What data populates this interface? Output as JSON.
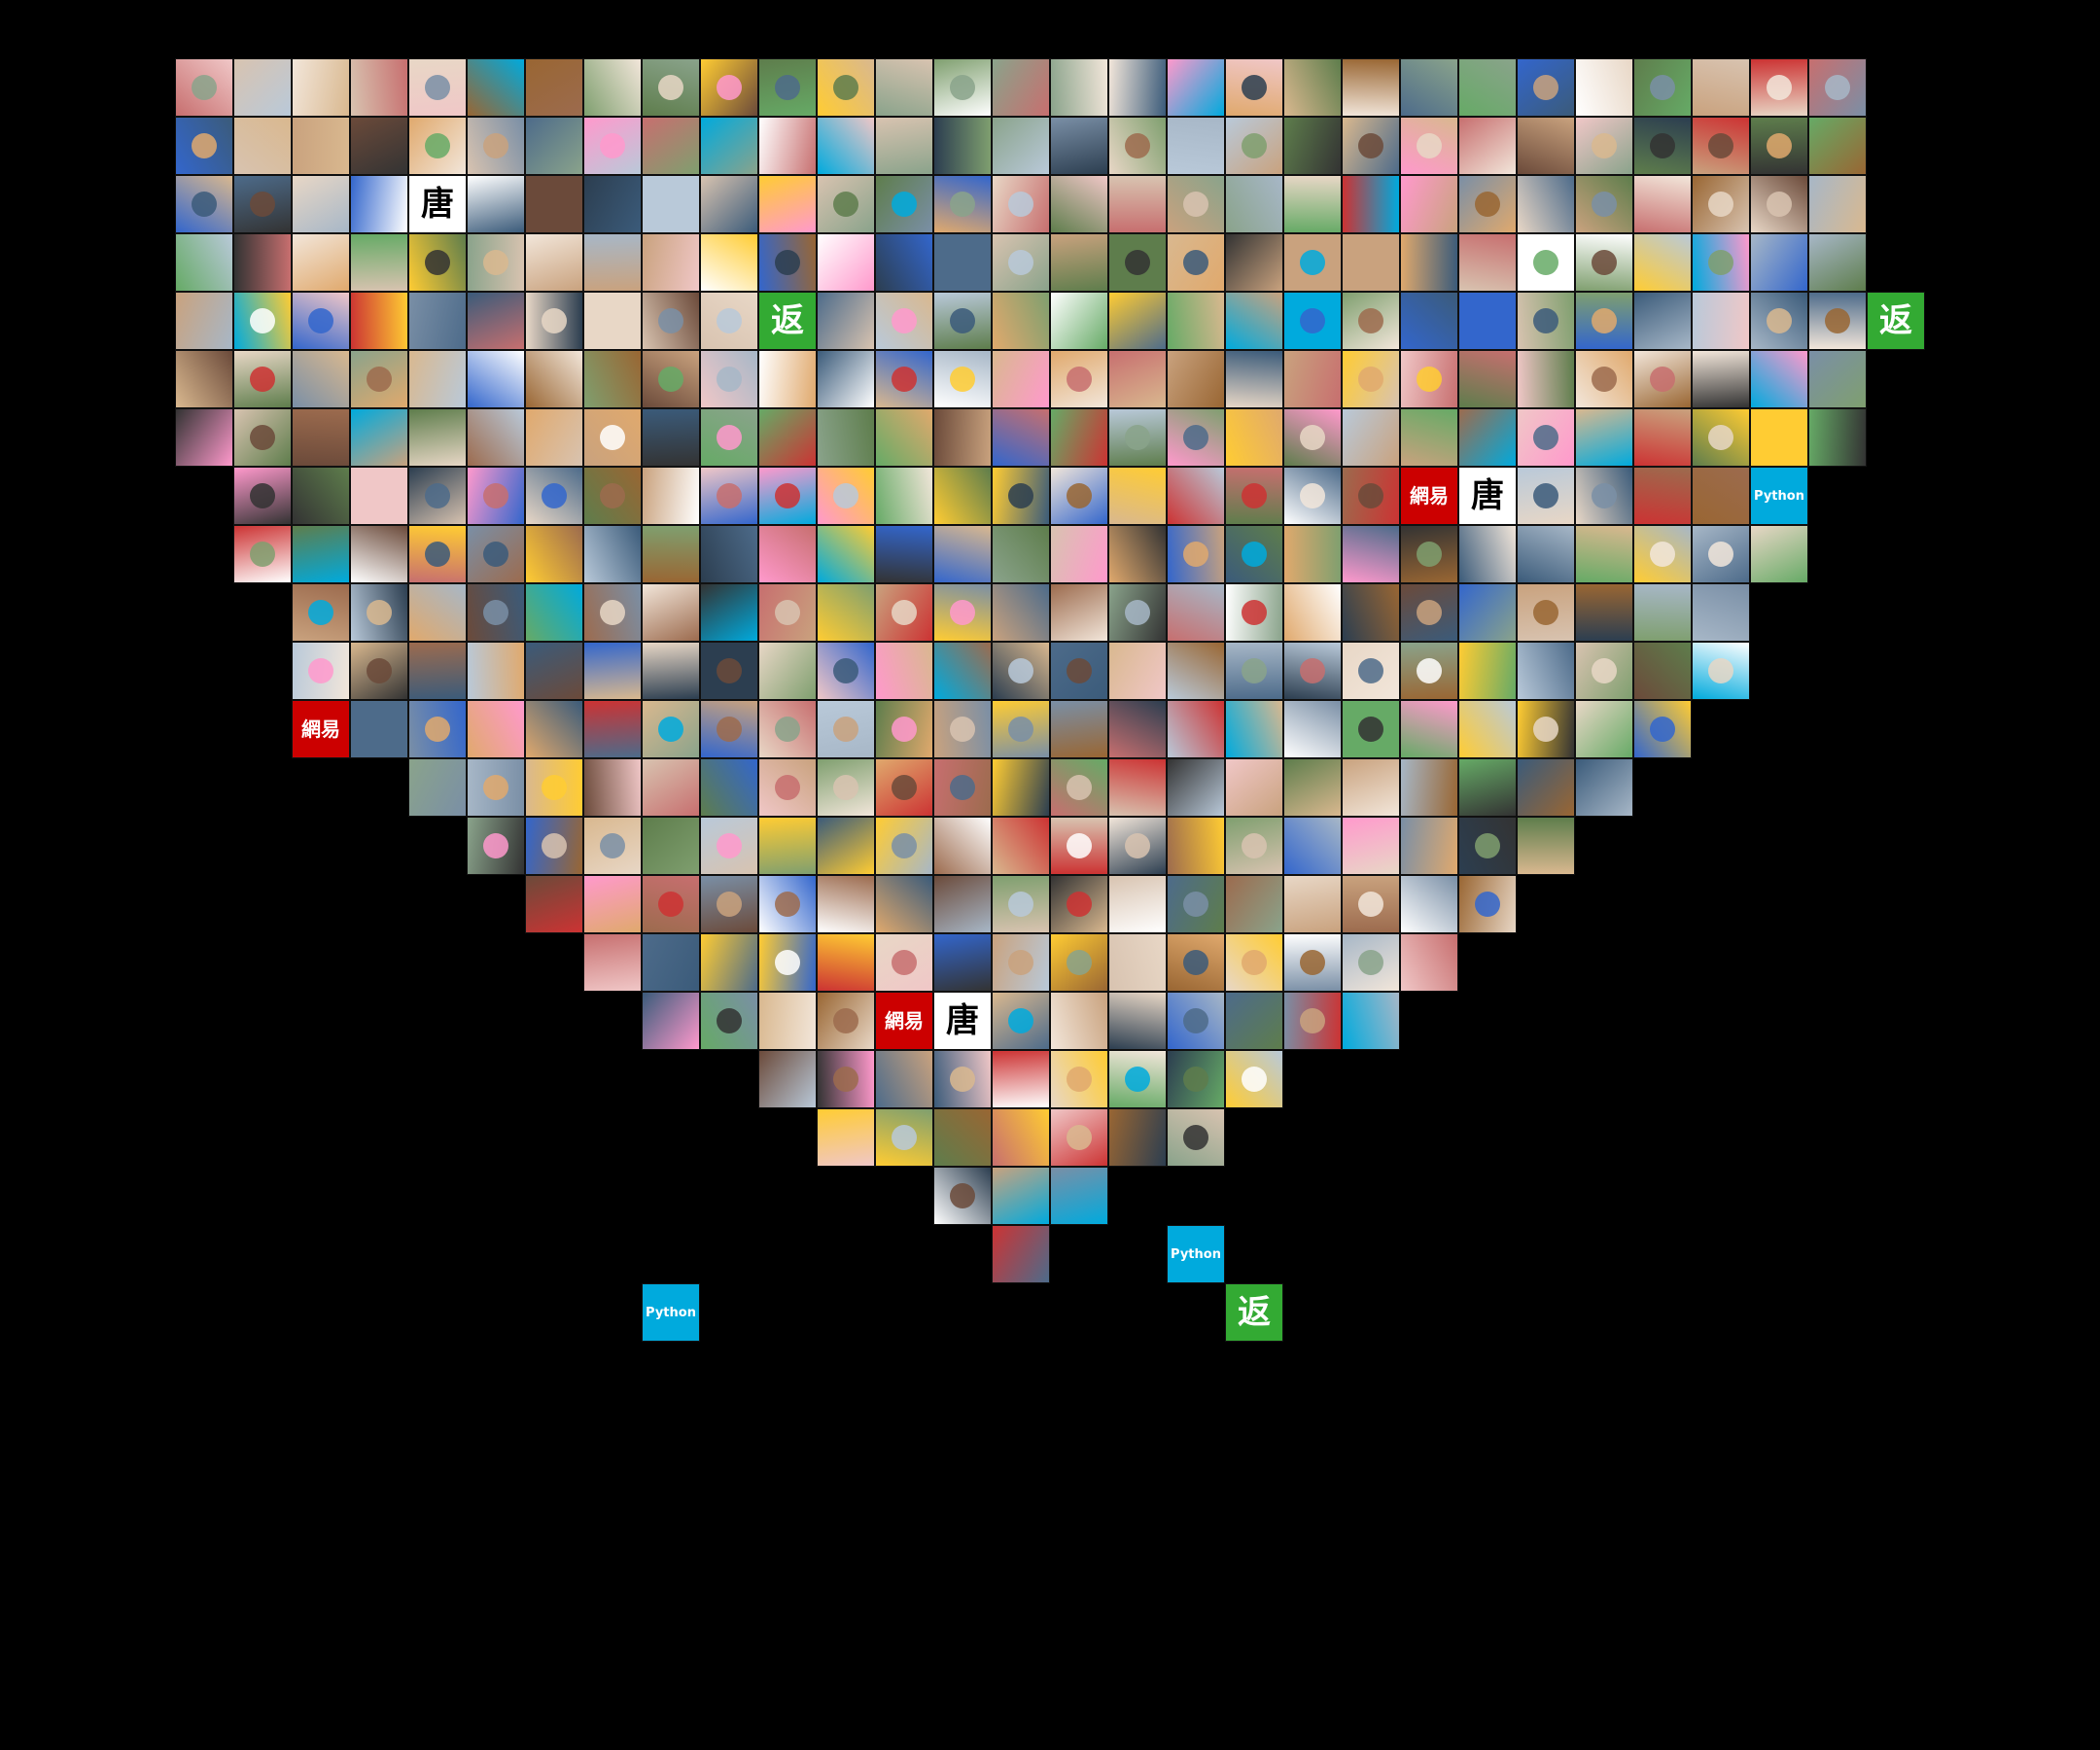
{
  "mosaic": {
    "shape": "heart",
    "columns": 33,
    "rows": 29,
    "background": "#000000",
    "palette": [
      "#c9a27e",
      "#7a8fa6",
      "#d8c3b0",
      "#3b5b7a",
      "#e8d7c6",
      "#9c6b4e",
      "#5e7d4c",
      "#f2e6da",
      "#a7b7c7",
      "#6b4a3a",
      "#2c3e50",
      "#d9b88f",
      "#8aa38b",
      "#c76f6f",
      "#b9c9d9",
      "#f0c7c7",
      "#4d6b8a",
      "#e0a96d",
      "#7f9f6f",
      "#ffffff",
      "#333333",
      "#ffcc33",
      "#3366cc",
      "#cc3333",
      "#66aa66",
      "#ff99cc",
      "#996633",
      "#00aadd"
    ],
    "labeled_tiles": [
      {
        "row": 2,
        "col": 6,
        "text": "唐",
        "bg": "#ffffff",
        "fg": "#000000"
      },
      {
        "row": 4,
        "col": 12,
        "text": "返",
        "bg": "#33aa33",
        "fg": "#ffffff"
      },
      {
        "row": 4,
        "col": 31,
        "text": "返",
        "bg": "#33aa33",
        "fg": "#ffffff"
      },
      {
        "row": 7,
        "col": 23,
        "text": "網易",
        "bg": "#cc0000",
        "fg": "#ffffff"
      },
      {
        "row": 7,
        "col": 24,
        "text": "唐",
        "bg": "#ffffff",
        "fg": "#000000"
      },
      {
        "row": 7,
        "col": 29,
        "text": "Python",
        "bg": "#00aadd",
        "fg": "#ffffff"
      },
      {
        "row": 11,
        "col": 4,
        "text": "網易",
        "bg": "#cc0000",
        "fg": "#ffffff"
      },
      {
        "row": 16,
        "col": 14,
        "text": "網易",
        "bg": "#cc0000",
        "fg": "#ffffff"
      },
      {
        "row": 16,
        "col": 15,
        "text": "唐",
        "bg": "#ffffff",
        "fg": "#000000"
      },
      {
        "row": 20,
        "col": 19,
        "text": "Python",
        "bg": "#00aadd",
        "fg": "#ffffff"
      },
      {
        "row": 21,
        "col": 10,
        "text": "Python",
        "bg": "#00aadd",
        "fg": "#ffffff"
      },
      {
        "row": 21,
        "col": 20,
        "text": "返",
        "bg": "#33aa33",
        "fg": "#ffffff"
      }
    ]
  }
}
